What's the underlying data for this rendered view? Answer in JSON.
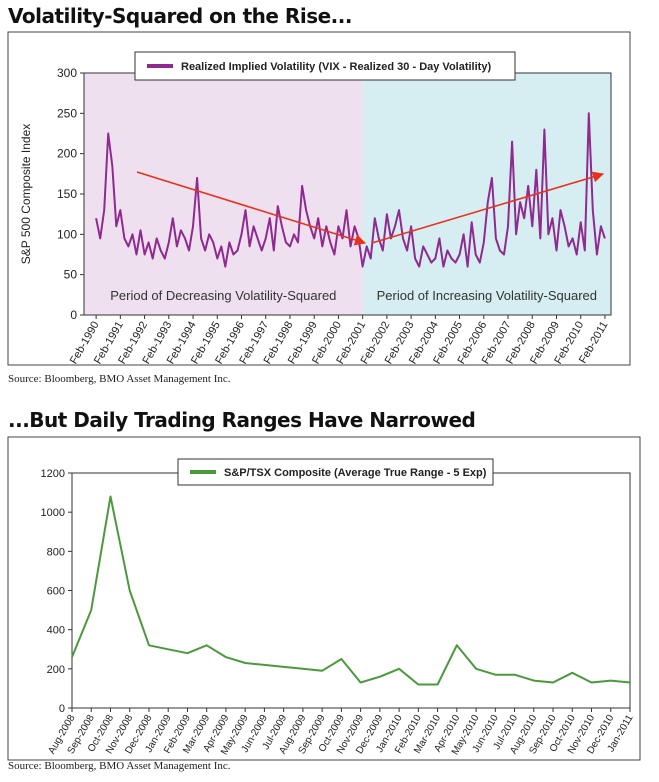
{
  "chart_data": [
    {
      "type": "line",
      "title": "Volatility-Squared on the Rise...",
      "y_label": "S&P 500 Composite Index",
      "source": "Source: Bloomberg, BMO Asset Management Inc.",
      "xlim": [
        "1989-08",
        "2011-05"
      ],
      "ylim": [
        0,
        300
      ],
      "yticks": [
        0,
        50,
        100,
        150,
        200,
        250,
        300
      ],
      "xticks": [
        {
          "value": "1990-02",
          "label": "Feb-1990"
        },
        {
          "value": "1991-02",
          "label": "Feb-1991"
        },
        {
          "value": "1992-02",
          "label": "Feb-1992"
        },
        {
          "value": "1993-02",
          "label": "Feb-1993"
        },
        {
          "value": "1994-02",
          "label": "Feb-1994"
        },
        {
          "value": "1995-02",
          "label": "Feb-1995"
        },
        {
          "value": "1996-02",
          "label": "Feb-1996"
        },
        {
          "value": "1997-02",
          "label": "Feb-1997"
        },
        {
          "value": "1998-02",
          "label": "Feb-1998"
        },
        {
          "value": "1999-02",
          "label": "Feb-1999"
        },
        {
          "value": "2000-02",
          "label": "Feb-2000"
        },
        {
          "value": "2001-02",
          "label": "Feb-2001"
        },
        {
          "value": "2002-02",
          "label": "Feb-2002"
        },
        {
          "value": "2003-02",
          "label": "Feb-2003"
        },
        {
          "value": "2004-02",
          "label": "Feb-2004"
        },
        {
          "value": "2005-02",
          "label": "Feb-2005"
        },
        {
          "value": "2006-02",
          "label": "Feb-2006"
        },
        {
          "value": "2007-02",
          "label": "Feb-2007"
        },
        {
          "value": "2008-02",
          "label": "Feb-2008"
        },
        {
          "value": "2009-02",
          "label": "Feb-2009"
        },
        {
          "value": "2010-02",
          "label": "Feb-2010"
        },
        {
          "value": "2011-02",
          "label": "Feb-2011"
        }
      ],
      "regions": [
        {
          "label": "Period of Decreasing Volatility-Squared",
          "from": "1989-08",
          "to": "2001-02",
          "color": "#efe0f0"
        },
        {
          "label": "Period of Increasing Volatility-Squared",
          "from": "2001-02",
          "to": "2011-05",
          "color": "#d6eef1"
        }
      ],
      "x": [
        "1990-02",
        "1990-04",
        "1990-06",
        "1990-08",
        "1990-10",
        "1990-12",
        "1991-02",
        "1991-04",
        "1991-06",
        "1991-08",
        "1991-10",
        "1991-12",
        "1992-02",
        "1992-04",
        "1992-06",
        "1992-08",
        "1992-10",
        "1992-12",
        "1993-02",
        "1993-04",
        "1993-06",
        "1993-08",
        "1993-10",
        "1993-12",
        "1994-02",
        "1994-04",
        "1994-06",
        "1994-08",
        "1994-10",
        "1994-12",
        "1995-02",
        "1995-04",
        "1995-06",
        "1995-08",
        "1995-10",
        "1995-12",
        "1996-02",
        "1996-04",
        "1996-06",
        "1996-08",
        "1996-10",
        "1996-12",
        "1997-02",
        "1997-04",
        "1997-06",
        "1997-08",
        "1997-10",
        "1997-12",
        "1998-02",
        "1998-04",
        "1998-06",
        "1998-08",
        "1998-10",
        "1998-12",
        "1999-02",
        "1999-04",
        "1999-06",
        "1999-08",
        "1999-10",
        "1999-12",
        "2000-02",
        "2000-04",
        "2000-06",
        "2000-08",
        "2000-10",
        "2000-12",
        "2001-02",
        "2001-04",
        "2001-06",
        "2001-08",
        "2001-10",
        "2001-12",
        "2002-02",
        "2002-04",
        "2002-06",
        "2002-08",
        "2002-10",
        "2002-12",
        "2003-02",
        "2003-04",
        "2003-06",
        "2003-08",
        "2003-10",
        "2003-12",
        "2004-02",
        "2004-04",
        "2004-06",
        "2004-08",
        "2004-10",
        "2004-12",
        "2005-02",
        "2005-04",
        "2005-06",
        "2005-08",
        "2005-10",
        "2005-12",
        "2006-02",
        "2006-04",
        "2006-06",
        "2006-08",
        "2006-10",
        "2006-12",
        "2007-02",
        "2007-04",
        "2007-06",
        "2007-08",
        "2007-10",
        "2007-12",
        "2008-02",
        "2008-04",
        "2008-06",
        "2008-08",
        "2008-10",
        "2008-12",
        "2009-02",
        "2009-04",
        "2009-06",
        "2009-08",
        "2009-10",
        "2009-12",
        "2010-02",
        "2010-04",
        "2010-06",
        "2010-08",
        "2010-10",
        "2010-12",
        "2011-02"
      ],
      "series": [
        {
          "name": "Realized Implied Volatility (VIX - Realized 30 - Day Volatility)",
          "color": "#8e2a90",
          "values": [
            120,
            95,
            130,
            225,
            185,
            110,
            130,
            95,
            85,
            100,
            75,
            105,
            75,
            90,
            70,
            95,
            80,
            70,
            90,
            120,
            85,
            105,
            95,
            80,
            110,
            170,
            95,
            80,
            100,
            90,
            70,
            85,
            60,
            90,
            75,
            80,
            100,
            130,
            85,
            110,
            95,
            80,
            95,
            120,
            80,
            135,
            110,
            90,
            85,
            100,
            90,
            160,
            130,
            110,
            95,
            120,
            85,
            110,
            90,
            75,
            110,
            95,
            130,
            85,
            110,
            95,
            60,
            85,
            70,
            120,
            95,
            80,
            125,
            95,
            110,
            130,
            95,
            80,
            110,
            70,
            60,
            85,
            75,
            65,
            70,
            95,
            60,
            80,
            70,
            65,
            75,
            100,
            60,
            115,
            75,
            65,
            90,
            140,
            170,
            95,
            80,
            75,
            110,
            215,
            100,
            140,
            120,
            160,
            110,
            180,
            95,
            230,
            100,
            120,
            80,
            130,
            110,
            85,
            95,
            75,
            115,
            80,
            250,
            130,
            75,
            110,
            95
          ]
        }
      ]
    },
    {
      "type": "line",
      "title": "...But Daily Trading Ranges Have Narrowed",
      "source": "Source: Bloomberg, BMO Asset Management Inc.",
      "xlim": [
        "2008-08",
        "2011-01"
      ],
      "ylim": [
        0,
        1200
      ],
      "yticks": [
        0,
        200,
        400,
        600,
        800,
        1000,
        1200
      ],
      "xticks": [
        {
          "value": "2008-08",
          "label": "Aug-2008"
        },
        {
          "value": "2008-09",
          "label": "Sep-2008"
        },
        {
          "value": "2008-10",
          "label": "Oct-2008"
        },
        {
          "value": "2008-11",
          "label": "Nov-2008"
        },
        {
          "value": "2008-12",
          "label": "Dec-2008"
        },
        {
          "value": "2009-01",
          "label": "Jan-2009"
        },
        {
          "value": "2009-02",
          "label": "Feb-2009"
        },
        {
          "value": "2009-03",
          "label": "Mar-2009"
        },
        {
          "value": "2009-04",
          "label": "Apr-2009"
        },
        {
          "value": "2009-05",
          "label": "May-2009"
        },
        {
          "value": "2009-06",
          "label": "Jun-2009"
        },
        {
          "value": "2009-07",
          "label": "Jul-2009"
        },
        {
          "value": "2009-08",
          "label": "Aug-2009"
        },
        {
          "value": "2009-09",
          "label": "Sep-2009"
        },
        {
          "value": "2009-10",
          "label": "Oct-2009"
        },
        {
          "value": "2009-11",
          "label": "Nov-2009"
        },
        {
          "value": "2009-12",
          "label": "Dec-2009"
        },
        {
          "value": "2010-01",
          "label": "Jan-2010"
        },
        {
          "value": "2010-02",
          "label": "Feb-2010"
        },
        {
          "value": "2010-03",
          "label": "Mar-2010"
        },
        {
          "value": "2010-04",
          "label": "Apr-2010"
        },
        {
          "value": "2010-05",
          "label": "May-2010"
        },
        {
          "value": "2010-06",
          "label": "Jun-2010"
        },
        {
          "value": "2010-07",
          "label": "Jul-2010"
        },
        {
          "value": "2010-08",
          "label": "Aug-2010"
        },
        {
          "value": "2010-09",
          "label": "Sep-2010"
        },
        {
          "value": "2010-10",
          "label": "Oct-2010"
        },
        {
          "value": "2010-11",
          "label": "Nov-2010"
        },
        {
          "value": "2010-12",
          "label": "Dec-2010"
        },
        {
          "value": "2011-01",
          "label": "Jan-2011"
        }
      ],
      "x": [
        "2008-08",
        "2008-09",
        "2008-10",
        "2008-11",
        "2008-12",
        "2009-01",
        "2009-02",
        "2009-03",
        "2009-04",
        "2009-05",
        "2009-06",
        "2009-07",
        "2009-08",
        "2009-09",
        "2009-10",
        "2009-11",
        "2009-12",
        "2010-01",
        "2010-02",
        "2010-03",
        "2010-04",
        "2010-05",
        "2010-06",
        "2010-07",
        "2010-08",
        "2010-09",
        "2010-10",
        "2010-11",
        "2010-12",
        "2011-01"
      ],
      "series": [
        {
          "name": "S&P/TSX Composite (Average True Range - 5 Exp)",
          "color": "#4a9a3c",
          "values": [
            260,
            500,
            1080,
            600,
            320,
            300,
            280,
            320,
            260,
            230,
            220,
            210,
            200,
            190,
            250,
            130,
            160,
            200,
            120,
            120,
            320,
            200,
            170,
            170,
            140,
            130,
            180,
            130,
            140,
            130
          ]
        }
      ]
    }
  ]
}
